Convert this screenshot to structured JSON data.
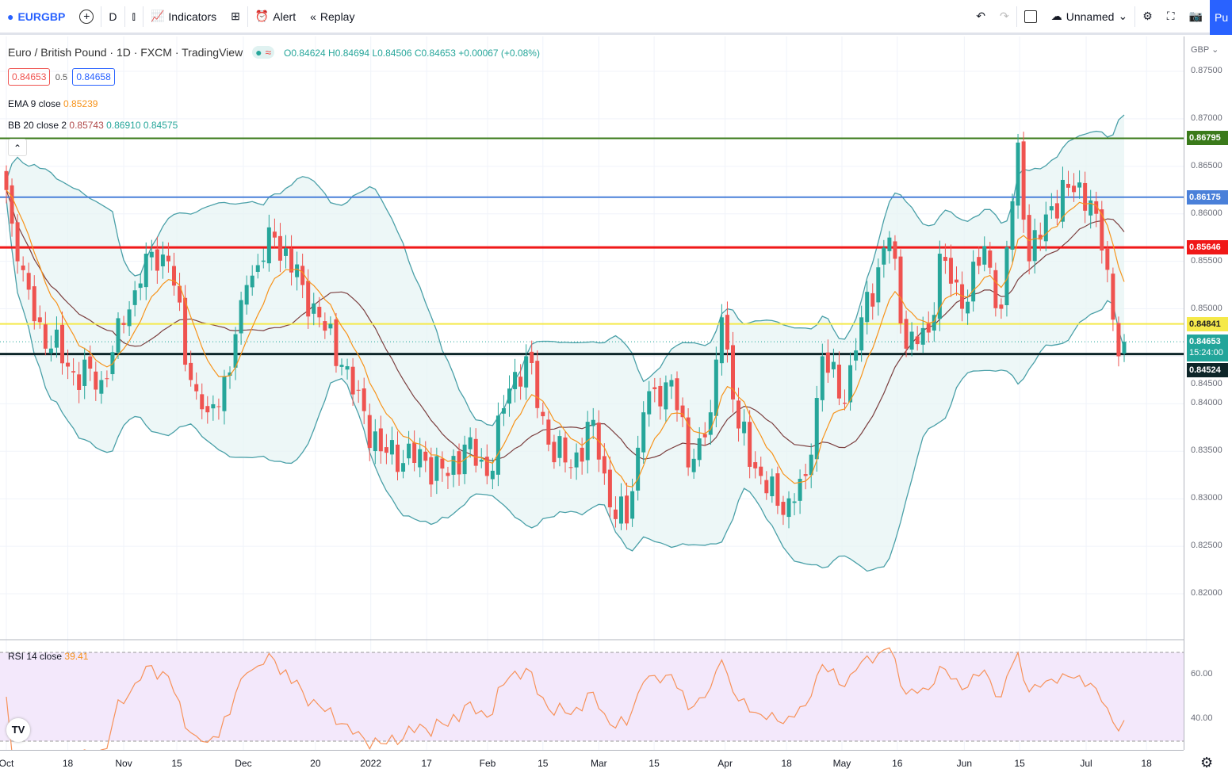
{
  "toolbar": {
    "symbol": "EURGBP",
    "interval": "D",
    "indicators": "Indicators",
    "alert": "Alert",
    "replay": "Replay",
    "layout_name": "Unnamed",
    "publish": "Pu"
  },
  "legend": {
    "title": "Euro / British Pound · 1D · FXCM · TradingView",
    "ohlc": "O0.84624 H0.84694 L0.84506 C0.84653 +0.00067 (+0.08%)",
    "sell": "0.84653",
    "spread": "0.5",
    "buy": "0.84658",
    "ema_label": "EMA 9 close",
    "ema_value": "0.85239",
    "bb_label": "BB 20 close 2",
    "bb_basis": "0.85743",
    "bb_upper": "0.86910",
    "bb_lower": "0.84575",
    "rsi_label": "RSI 14 close",
    "rsi_value": "39.41"
  },
  "axis": {
    "currency": "GBP",
    "price_labels": [
      "0.87500",
      "0.87000",
      "0.86500",
      "0.86000",
      "0.85500",
      "0.85000",
      "0.84500",
      "0.84000",
      "0.83500",
      "0.83000",
      "0.82500",
      "0.82000"
    ],
    "rsi_labels": [
      "60.00",
      "40.00"
    ],
    "countdown": "15:24:00"
  },
  "colors": {
    "up": "#26a69a",
    "down": "#ef5350",
    "ema": "#f7931a",
    "basis": "#7b3f3f",
    "band": "#4aa0a8"
  },
  "levels": [
    {
      "price": 0.86795,
      "label": "0.86795",
      "color": "#3a7a1a"
    },
    {
      "price": 0.86175,
      "label": "0.86175",
      "color": "#4a80d9"
    },
    {
      "price": 0.85646,
      "label": "0.85646",
      "color": "#f01818"
    },
    {
      "price": 0.84841,
      "label": "0.84841",
      "color": "#f5e94a"
    },
    {
      "price": 0.84524,
      "label": "0.84524",
      "color": "#0d2528"
    },
    {
      "price": 0.84653,
      "label": "0.84653",
      "color": "#22a59a"
    }
  ],
  "time_labels": [
    [
      "Oct",
      1
    ],
    [
      "18",
      12
    ],
    [
      "Nov",
      22
    ],
    [
      "15",
      31.5
    ],
    [
      "Dec",
      43.4
    ],
    [
      "20",
      56.3
    ],
    [
      "2022",
      66.2
    ],
    [
      "17",
      76.2
    ],
    [
      "Feb",
      87.1
    ],
    [
      "15",
      97
    ],
    [
      "Mar",
      107
    ],
    [
      "15",
      116.9
    ],
    [
      "Apr",
      129.6
    ],
    [
      "18",
      140.6
    ],
    [
      "May",
      150.5
    ],
    [
      "16",
      160.4
    ],
    [
      "Jun",
      172.4
    ],
    [
      "15",
      182.3
    ],
    [
      "Jul",
      194.2
    ],
    [
      "18",
      205
    ]
  ],
  "chart_data": {
    "type": "candlestick",
    "note": "approximate close path (day index, price)",
    "ylim": [
      0.815,
      0.877
    ],
    "close_path": [
      [
        0,
        0.8625
      ],
      [
        2,
        0.855
      ],
      [
        5,
        0.8487
      ],
      [
        12,
        0.8433
      ],
      [
        17,
        0.8425
      ],
      [
        21,
        0.8483
      ],
      [
        25,
        0.8558
      ],
      [
        29,
        0.855
      ],
      [
        33,
        0.8425
      ],
      [
        36,
        0.8391
      ],
      [
        40,
        0.8433
      ],
      [
        43,
        0.8525
      ],
      [
        48,
        0.8575
      ],
      [
        53,
        0.8525
      ],
      [
        56,
        0.8491
      ],
      [
        60,
        0.8441
      ],
      [
        67,
        0.835
      ],
      [
        75,
        0.834
      ],
      [
        79,
        0.8324
      ],
      [
        82,
        0.8357
      ],
      [
        86,
        0.8324
      ],
      [
        90,
        0.8416
      ],
      [
        93,
        0.845
      ],
      [
        97,
        0.8357
      ],
      [
        101,
        0.8333
      ],
      [
        105,
        0.8383
      ],
      [
        108,
        0.8291
      ],
      [
        111,
        0.8274
      ],
      [
        114,
        0.8391
      ],
      [
        119,
        0.8425
      ],
      [
        122,
        0.8333
      ],
      [
        126,
        0.8391
      ],
      [
        128,
        0.8491
      ],
      [
        131,
        0.8374
      ],
      [
        135,
        0.8324
      ],
      [
        139,
        0.8283
      ],
      [
        143,
        0.8324
      ],
      [
        146,
        0.845
      ],
      [
        150,
        0.84
      ],
      [
        153,
        0.8491
      ],
      [
        158,
        0.8575
      ],
      [
        161,
        0.8458
      ],
      [
        165,
        0.8475
      ],
      [
        167,
        0.8558
      ],
      [
        171,
        0.85
      ],
      [
        175,
        0.8566
      ],
      [
        178,
        0.85
      ],
      [
        181,
        0.8675
      ],
      [
        183,
        0.855
      ],
      [
        187,
        0.8608
      ],
      [
        192,
        0.8633
      ],
      [
        195,
        0.86
      ],
      [
        197,
        0.8541
      ],
      [
        199,
        0.845
      ],
      [
        200,
        0.84653
      ]
    ]
  }
}
